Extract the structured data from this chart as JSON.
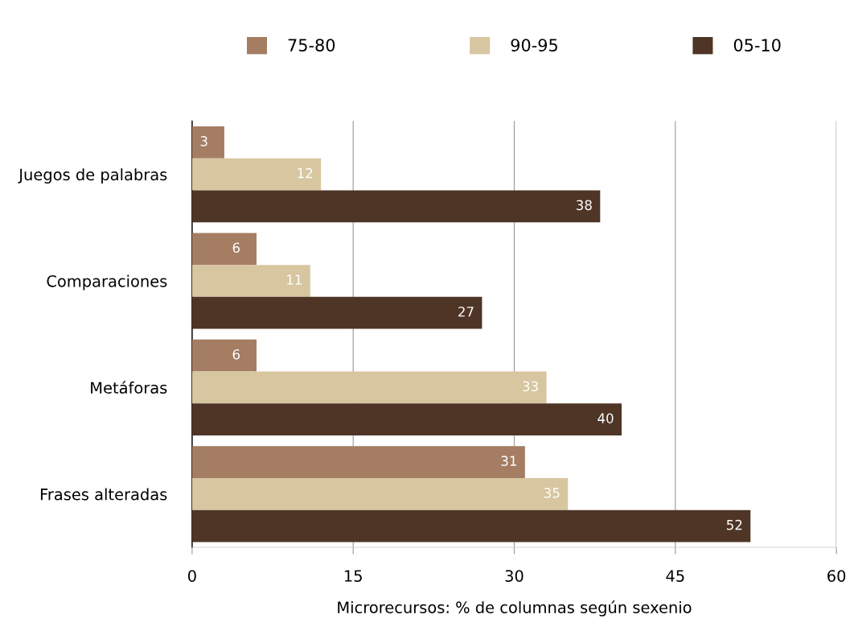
{
  "chart_data": {
    "type": "bar",
    "orientation": "horizontal",
    "categories": [
      "Juegos de palabras",
      "Comparaciones",
      "Metáforas",
      "Frases alteradas"
    ],
    "series": [
      {
        "name": "75-80",
        "color": "#a47d63",
        "values": [
          3,
          6,
          6,
          31
        ]
      },
      {
        "name": "90-95",
        "color": "#d7c6a0",
        "values": [
          12,
          11,
          33,
          35
        ]
      },
      {
        "name": "05-10",
        "color": "#4e3526",
        "values": [
          38,
          27,
          40,
          52
        ]
      }
    ],
    "xlabel": "Microrecursos: % de columnas según sexenio",
    "xlim": [
      0,
      60
    ],
    "xticks": [
      0,
      15,
      30,
      45,
      60
    ],
    "grid": "x",
    "legend": "top",
    "data_labels": true
  }
}
